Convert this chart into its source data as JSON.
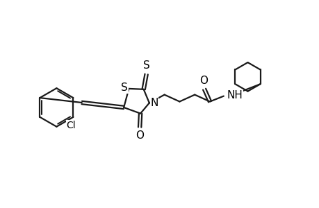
{
  "background_color": "#ffffff",
  "line_color": "#1a1a1a",
  "line_width": 1.6,
  "figure_width": 4.6,
  "figure_height": 3.0,
  "dpi": 100,
  "xlim": [
    0,
    46
  ],
  "ylim": [
    0,
    30
  ],
  "font_size": 11
}
